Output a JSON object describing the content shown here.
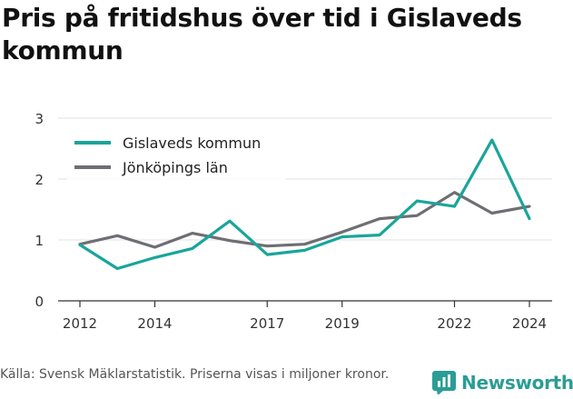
{
  "title": "Pris på fritidshus över tid i Gislaveds kommun",
  "footer": "Källa: Svensk Mäklarstatistik. Priserna visas i miljoner kronor.",
  "brand": "Newsworthy",
  "colors": {
    "gislaved": "#1aa59a",
    "jonkoping": "#6e6e73",
    "grid": "#e2e2e2",
    "brand": "#2b9d95"
  },
  "chart_data": {
    "type": "line",
    "title": "Pris på fritidshus över tid i Gislaveds kommun",
    "xlabel": "",
    "ylabel": "",
    "x": [
      2012,
      2013,
      2014,
      2015,
      2016,
      2017,
      2018,
      2019,
      2020,
      2021,
      2022,
      2023,
      2024
    ],
    "xlim": [
      2011.95,
      2024.55
    ],
    "ylim": [
      0,
      3
    ],
    "x_ticks": [
      "2012",
      "2014",
      "2017",
      "2019",
      "2022",
      "2024"
    ],
    "x_tick_values": [
      2012,
      2014,
      2017,
      2019,
      2022,
      2024
    ],
    "y_ticks": [
      "0",
      "1",
      "2",
      "3"
    ],
    "y_tick_values": [
      0,
      1,
      2,
      3
    ],
    "grid": true,
    "legend_position": "top-left",
    "series": [
      {
        "name": "Gislaveds kommun",
        "color": "#1aa59a",
        "values": [
          0.92,
          0.53,
          0.71,
          0.86,
          1.31,
          0.76,
          0.83,
          1.05,
          1.08,
          1.64,
          1.55,
          2.64,
          1.35
        ]
      },
      {
        "name": "Jönköpings län",
        "color": "#6e6e73",
        "values": [
          0.93,
          1.07,
          0.88,
          1.11,
          0.99,
          0.9,
          0.93,
          1.13,
          1.35,
          1.4,
          1.78,
          1.44,
          1.55
        ]
      }
    ]
  }
}
